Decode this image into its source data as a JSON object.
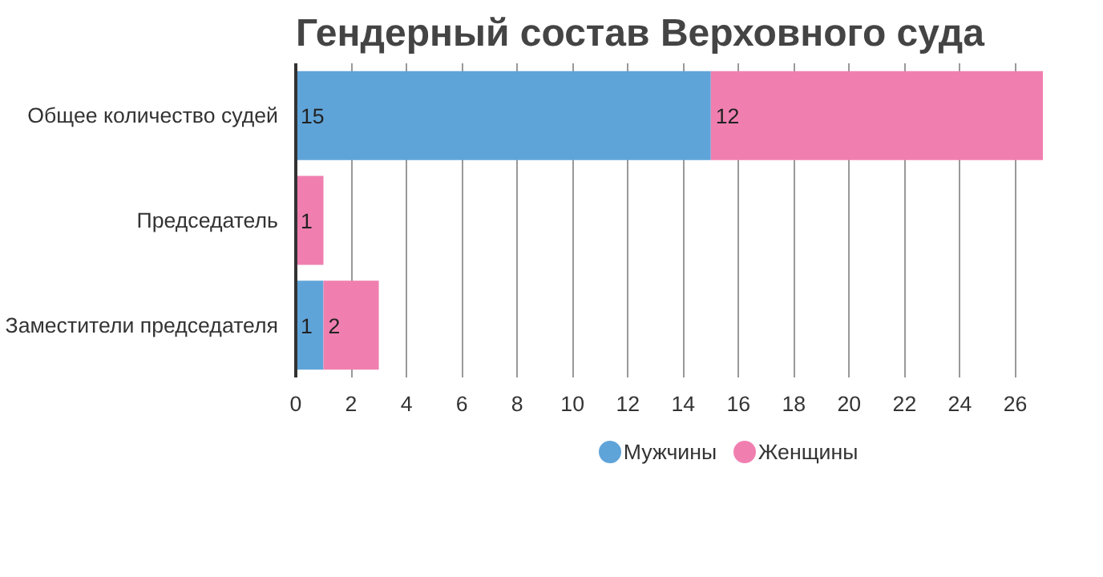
{
  "chart_data": {
    "type": "bar",
    "orientation": "horizontal",
    "stacked": true,
    "title": "Гендерный состав Верховного суда",
    "categories": [
      "Общее количество судей",
      "Председатель",
      "Заместители председателя"
    ],
    "series": [
      {
        "name": "Мужчины",
        "color": "#5fa4d9",
        "values": [
          15,
          0,
          1
        ],
        "value_labels": [
          "15",
          null,
          "1"
        ]
      },
      {
        "name": "Женщины",
        "color": "#f07fb0",
        "values": [
          12,
          1,
          2
        ],
        "value_labels": [
          "12",
          "1",
          "2"
        ]
      }
    ],
    "xlim": [
      0,
      27
    ],
    "xticks": [
      0,
      2,
      4,
      6,
      8,
      10,
      12,
      14,
      16,
      18,
      20,
      22,
      24,
      26
    ],
    "grid": "x",
    "legend": "bottom"
  }
}
